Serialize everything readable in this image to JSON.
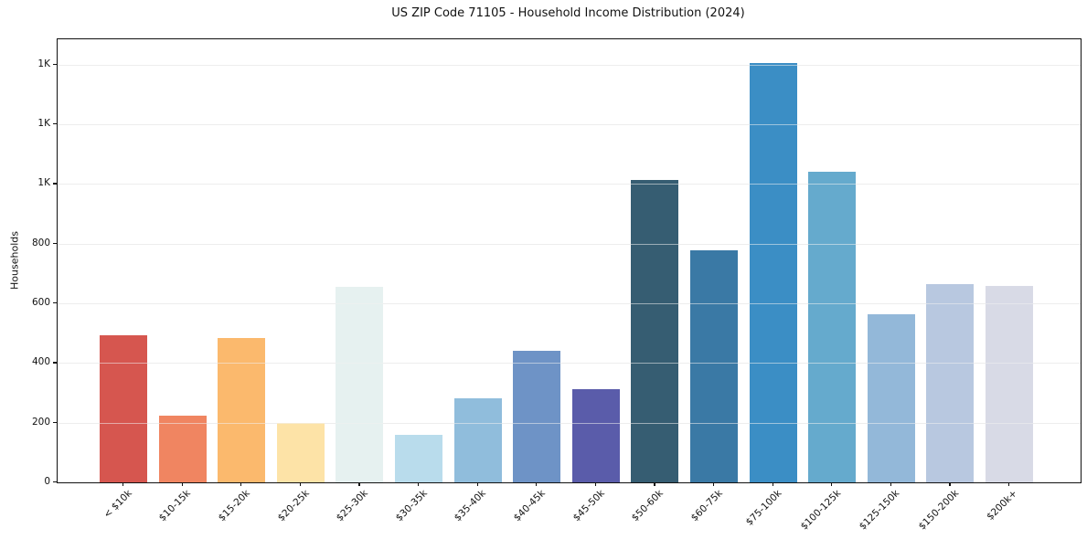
{
  "title": "US ZIP Code 71105 - Household Income Distribution (2024)",
  "chart_data": {
    "type": "bar",
    "title": "US ZIP Code 71105 - Household Income Distribution (2024)",
    "xlabel": "",
    "ylabel": "Households",
    "categories": [
      "< $10k",
      "$10-15k",
      "$15-20k",
      "$20-25k",
      "$25-30k",
      "$30-35k",
      "$35-40k",
      "$40-45k",
      "$45-50k",
      "$50-60k",
      "$60-75k",
      "$75-100k",
      "$100-125k",
      "$125-150k",
      "$150-200k",
      "$200k+"
    ],
    "values": [
      492,
      224,
      485,
      198,
      654,
      158,
      281,
      442,
      313,
      1013,
      779,
      1406,
      1040,
      564,
      666,
      657
    ],
    "bar_colors": [
      "#d6564f",
      "#f08561",
      "#fbb96d",
      "#fde3a7",
      "#e6f1f0",
      "#b9dcec",
      "#90bddc",
      "#6e93c6",
      "#5a5caa",
      "#365d72",
      "#3a79a5",
      "#3b8ec5",
      "#65aacd",
      "#93b8d9",
      "#b8c8e0",
      "#d8dae6"
    ],
    "ylim": [
      0,
      1485
    ],
    "yticks": {
      "values": [
        0,
        200,
        400,
        600,
        800,
        1000,
        1200,
        1400
      ],
      "labels": [
        "0",
        "200",
        "400",
        "600",
        "800",
        "1K",
        "1K",
        "1K"
      ]
    },
    "grid": "horizontal-only",
    "legend": "none",
    "x_tick_rotation": 45
  }
}
